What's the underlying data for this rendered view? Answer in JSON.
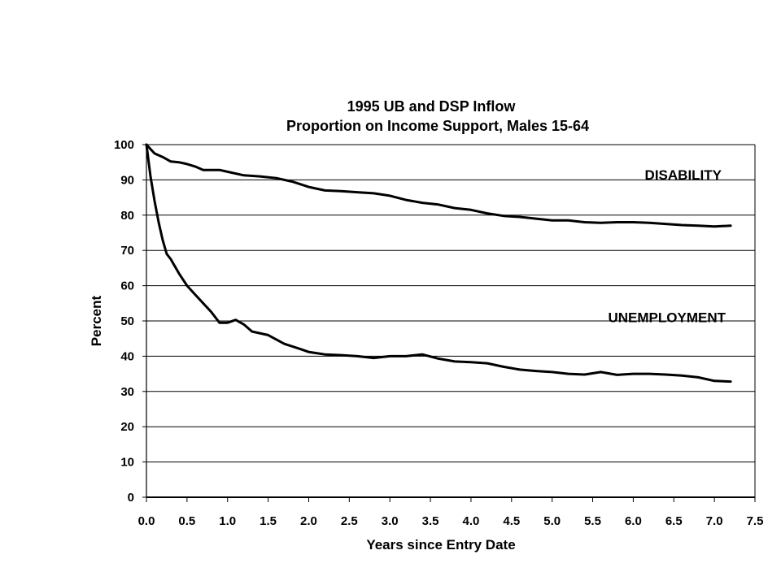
{
  "chart_data": {
    "type": "line",
    "title": [
      "1995 UB and DSP Inflow",
      "Proportion on Income Support, Males 15-64"
    ],
    "xlabel": "Years since Entry Date",
    "ylabel": "Percent",
    "xlim": [
      0,
      7.5
    ],
    "ylim": [
      0,
      100
    ],
    "x_ticks": [
      "0.0",
      "0.5",
      "1.0",
      "1.5",
      "2.0",
      "2.5",
      "3.0",
      "3.5",
      "4.0",
      "4.5",
      "5.0",
      "5.5",
      "6.0",
      "6.5",
      "7.0",
      "7.5"
    ],
    "y_ticks": [
      "0",
      "10",
      "20",
      "30",
      "40",
      "50",
      "60",
      "70",
      "80",
      "90",
      "100"
    ],
    "grid": "horizontal",
    "legend": "none",
    "series": [
      {
        "name": "DISABILITY",
        "label_position": "top-right",
        "x": [
          0.0,
          0.1,
          0.2,
          0.3,
          0.4,
          0.5,
          0.6,
          0.7,
          0.8,
          0.9,
          1.0,
          1.2,
          1.4,
          1.6,
          1.8,
          2.0,
          2.2,
          2.4,
          2.6,
          2.8,
          3.0,
          3.2,
          3.4,
          3.6,
          3.8,
          4.0,
          4.2,
          4.4,
          4.6,
          4.8,
          5.0,
          5.2,
          5.4,
          5.6,
          5.8,
          6.0,
          6.2,
          6.4,
          6.6,
          6.8,
          7.0,
          7.2
        ],
        "values": [
          100,
          97.5,
          96.5,
          95.2,
          95.0,
          94.5,
          93.8,
          92.8,
          92.8,
          92.8,
          92.3,
          91.3,
          91.0,
          90.5,
          89.5,
          88.0,
          87.0,
          86.8,
          86.5,
          86.2,
          85.5,
          84.3,
          83.5,
          83.0,
          82.0,
          81.5,
          80.5,
          79.8,
          79.5,
          79.0,
          78.5,
          78.5,
          78.0,
          77.8,
          78.0,
          78.0,
          77.8,
          77.5,
          77.2,
          77.0,
          76.8,
          77.0
        ]
      },
      {
        "name": "UNEMPLOYMENT",
        "label_position": "right",
        "x": [
          0.0,
          0.05,
          0.1,
          0.15,
          0.2,
          0.25,
          0.3,
          0.4,
          0.5,
          0.6,
          0.7,
          0.8,
          0.9,
          1.0,
          1.1,
          1.2,
          1.3,
          1.5,
          1.7,
          1.9,
          2.0,
          2.2,
          2.4,
          2.6,
          2.8,
          3.0,
          3.2,
          3.4,
          3.6,
          3.8,
          4.0,
          4.2,
          4.4,
          4.6,
          4.8,
          5.0,
          5.2,
          5.4,
          5.6,
          5.8,
          6.0,
          6.2,
          6.4,
          6.6,
          6.8,
          7.0,
          7.2
        ],
        "values": [
          100,
          91.0,
          84.0,
          78.0,
          73.0,
          69.0,
          67.5,
          63.5,
          60.0,
          57.5,
          55.0,
          52.5,
          49.5,
          49.5,
          50.3,
          49.0,
          47.0,
          46.0,
          43.5,
          42.0,
          41.2,
          40.5,
          40.3,
          40.0,
          39.5,
          40.0,
          40.0,
          40.5,
          39.3,
          38.5,
          38.3,
          38.0,
          37.0,
          36.2,
          35.8,
          35.5,
          35.0,
          34.8,
          35.5,
          34.7,
          35.0,
          35.0,
          34.8,
          34.5,
          34.0,
          33.0,
          32.8
        ]
      }
    ]
  }
}
